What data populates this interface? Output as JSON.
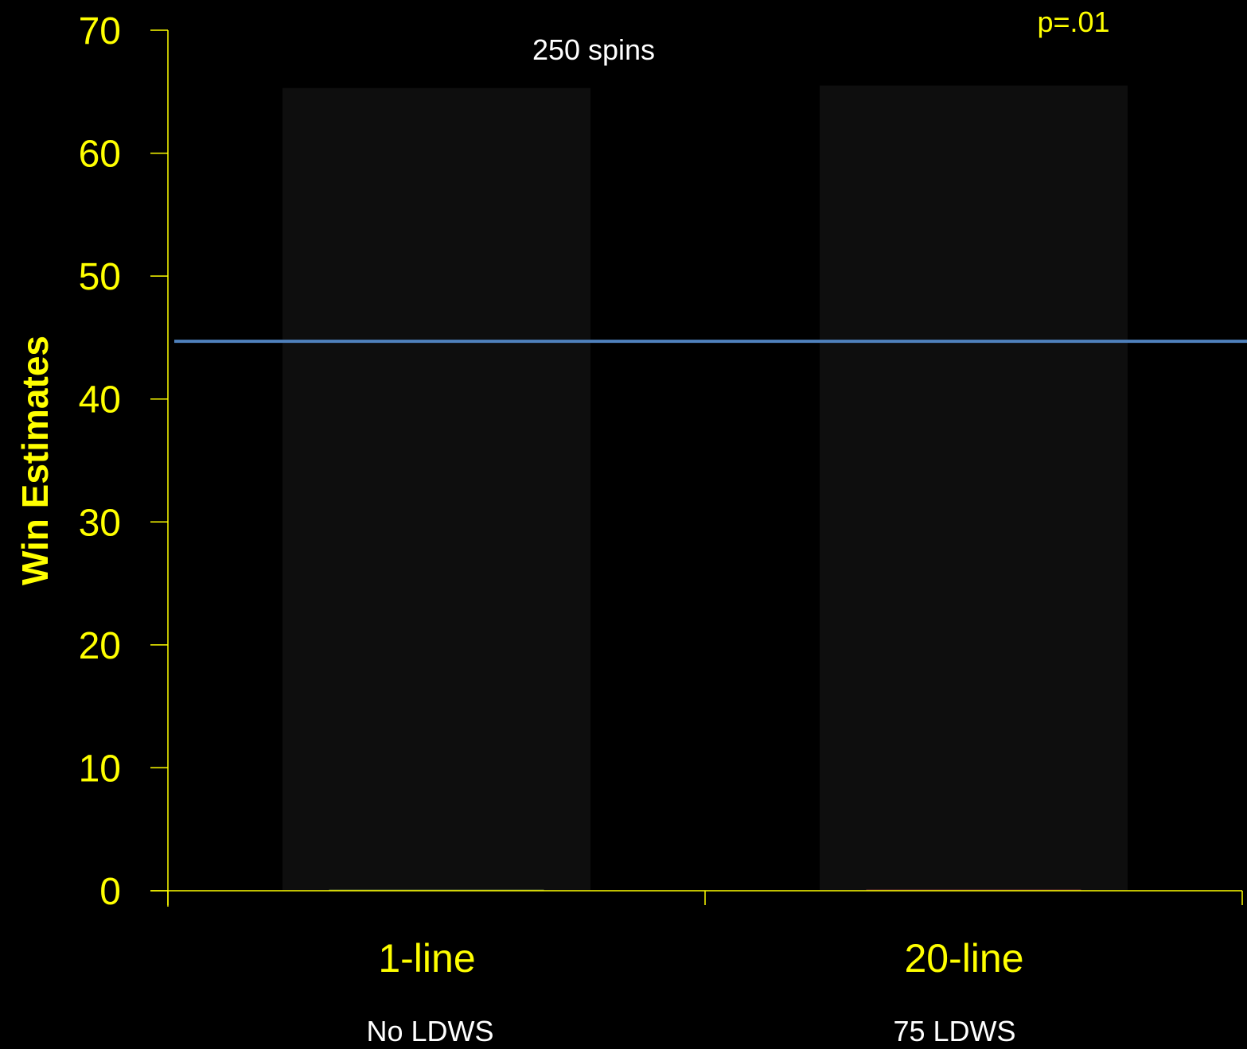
{
  "chart_data": {
    "type": "bar",
    "title": "",
    "annotation_top": "250 spins",
    "significance_label": "p=.01",
    "ylabel": "Win Estimates",
    "xlabel": "",
    "ylim": [
      0,
      70
    ],
    "yticks": [
      "0",
      "10",
      "20",
      "30",
      "40",
      "50",
      "60",
      "70"
    ],
    "categories": [
      "1-line",
      "20-line"
    ],
    "category_sublabels": [
      "No LDWS",
      "75 LDWS"
    ],
    "bar_background_values": [
      65.3,
      65.5
    ],
    "values": [
      0,
      0.1
    ],
    "reference_line": 44.7,
    "grid": false,
    "colors": {
      "background": "#000000",
      "axis": "#ffff00",
      "text_yellow": "#ffff00",
      "text_white": "#ffffff",
      "bar_background": "#0e0e0e",
      "reference_line": "#4f81bd",
      "bar_1": "#9bbb59",
      "bar_2": "#c0504d"
    }
  }
}
